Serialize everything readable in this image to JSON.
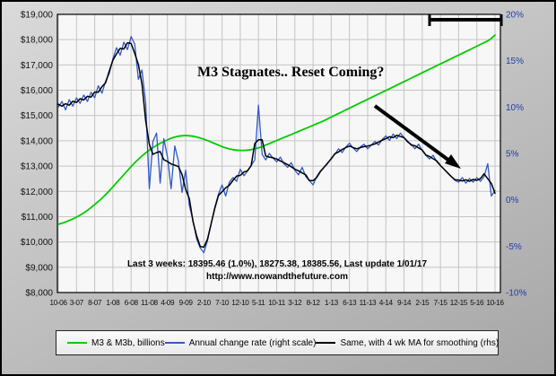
{
  "annotation": {
    "headline": "M3 Stagnates.. Reset Coming?"
  },
  "footnotes": {
    "last_3_weeks": "Last 3 weeks: 18395.46 (1.0%), 18275.38, 18385.56, Last update 1/01/17",
    "url": "http://www.nowandthefuture.com"
  },
  "legend": {
    "position": "bottom",
    "items": [
      {
        "label": "M3 & M3b, billions",
        "color": "#00cc00"
      },
      {
        "label": "Annual change rate (right scale)",
        "color": "#3059c8"
      },
      {
        "label": "Same, with 4 wk MA for smoothing (rhs)",
        "color": "#000000"
      }
    ]
  },
  "chart_data": {
    "type": "line",
    "title": "",
    "annotations": [
      "M3 Stagnates.. Reset Coming?",
      "downward trend arrow over 2015-2016",
      "black range bar at top right"
    ],
    "grid": "on",
    "x_note": "monthly samples, index 0 = Oct 2006 (10-06), index 120 = Oct 2016 (10-16)",
    "x_tick_positions": [
      0,
      5,
      10,
      15,
      20,
      25,
      30,
      35,
      40,
      45,
      50,
      55,
      60,
      65,
      70,
      75,
      80,
      85,
      90,
      95,
      100,
      105,
      110,
      115,
      120
    ],
    "x_tick_labels": [
      "10-06",
      "3-07",
      "8-07",
      "1-08",
      "6-08",
      "11-08",
      "4-09",
      "9-09",
      "2-10",
      "7-10",
      "12-10",
      "5-11",
      "10-11",
      "3-12",
      "8-12",
      "1-13",
      "6-13",
      "11-13",
      "4-14",
      "9-14",
      "2-15",
      "7-15",
      "12-15",
      "5-16",
      "10-16"
    ],
    "left_axis": {
      "min": 8000,
      "max": 19000,
      "step": 1000,
      "tick_labels": [
        "$19,000",
        "$18,000",
        "$17,000",
        "$16,000",
        "$15,000",
        "$14,000",
        "$13,000",
        "$12,000",
        "$11,000",
        "$10,000",
        "$9,000",
        "$8,000"
      ],
      "color": "#111111"
    },
    "right_axis": {
      "min": -10,
      "max": 20,
      "step": 5,
      "tick_labels": [
        "20%",
        "15%",
        "10%",
        "5%",
        "0%",
        "-5%",
        "-10%"
      ],
      "color": "#1f3db0"
    },
    "series": [
      {
        "name": "M3 & M3b, billions",
        "axis": "left",
        "color": "#00cc00",
        "values": [
          10700,
          10740,
          10790,
          10850,
          10910,
          10980,
          11060,
          11150,
          11250,
          11360,
          11480,
          11600,
          11730,
          11870,
          12020,
          12180,
          12340,
          12500,
          12660,
          12820,
          12980,
          13130,
          13270,
          13400,
          13520,
          13630,
          13730,
          13820,
          13900,
          13970,
          14040,
          14100,
          14150,
          14180,
          14200,
          14210,
          14200,
          14180,
          14150,
          14110,
          14060,
          14010,
          13950,
          13890,
          13830,
          13770,
          13720,
          13680,
          13650,
          13630,
          13620,
          13620,
          13630,
          13650,
          13680,
          13720,
          13770,
          13830,
          13890,
          13950,
          14010,
          14070,
          14130,
          14190,
          14250,
          14310,
          14370,
          14430,
          14490,
          14550,
          14610,
          14670,
          14730,
          14800,
          14870,
          14940,
          15010,
          15080,
          15150,
          15220,
          15290,
          15360,
          15430,
          15500,
          15570,
          15640,
          15710,
          15780,
          15850,
          15920,
          15990,
          16060,
          16130,
          16200,
          16270,
          16340,
          16410,
          16480,
          16550,
          16620,
          16690,
          16760,
          16830,
          16900,
          16970,
          17040,
          17110,
          17180,
          17250,
          17320,
          17390,
          17460,
          17530,
          17600,
          17670,
          17740,
          17810,
          17880,
          17950,
          18050,
          18180
        ]
      },
      {
        "name": "Annual change rate (right scale)",
        "axis": "right",
        "color": "#3059c8",
        "values": [
          10.0,
          10.6,
          9.7,
          10.8,
          10.1,
          11.0,
          10.4,
          11.3,
          10.6,
          11.6,
          11.0,
          12.3,
          11.5,
          12.8,
          13.6,
          15.2,
          16.4,
          15.6,
          17.0,
          16.2,
          17.6,
          16.8,
          13.0,
          14.0,
          10.5,
          1.2,
          6.3,
          7.2,
          1.8,
          6.6,
          4.6,
          1.2,
          5.8,
          4.2,
          0.8,
          3.2,
          -0.6,
          -2.2,
          -4.2,
          -5.2,
          -5.7,
          -4.4,
          -2.6,
          -0.8,
          0.6,
          1.6,
          0.4,
          1.9,
          2.4,
          2.0,
          3.3,
          2.6,
          3.1,
          3.7,
          4.3,
          10.2,
          4.9,
          4.3,
          5.0,
          4.5,
          4.1,
          4.6,
          3.9,
          3.5,
          4.0,
          3.2,
          2.7,
          3.5,
          2.5,
          2.1,
          1.6,
          2.5,
          3.1,
          3.5,
          3.9,
          4.5,
          4.9,
          5.5,
          5.1,
          5.7,
          6.1,
          5.6,
          5.2,
          5.7,
          6.0,
          5.5,
          5.9,
          6.3,
          5.9,
          6.5,
          6.9,
          6.4,
          7.1,
          6.6,
          7.2,
          6.7,
          6.2,
          6.0,
          5.5,
          6.0,
          5.3,
          4.8,
          4.4,
          4.8,
          4.1,
          3.7,
          3.3,
          2.9,
          2.5,
          2.1,
          1.9,
          2.4,
          1.8,
          2.3,
          1.9,
          2.4,
          2.0,
          2.5,
          3.9,
          0.4,
          1.0
        ]
      },
      {
        "name": "Same, with 4 wk MA for smoothing (rhs)",
        "axis": "right",
        "color": "#000000",
        "derived": "4 wk moving average of the annual change rate series"
      }
    ]
  }
}
